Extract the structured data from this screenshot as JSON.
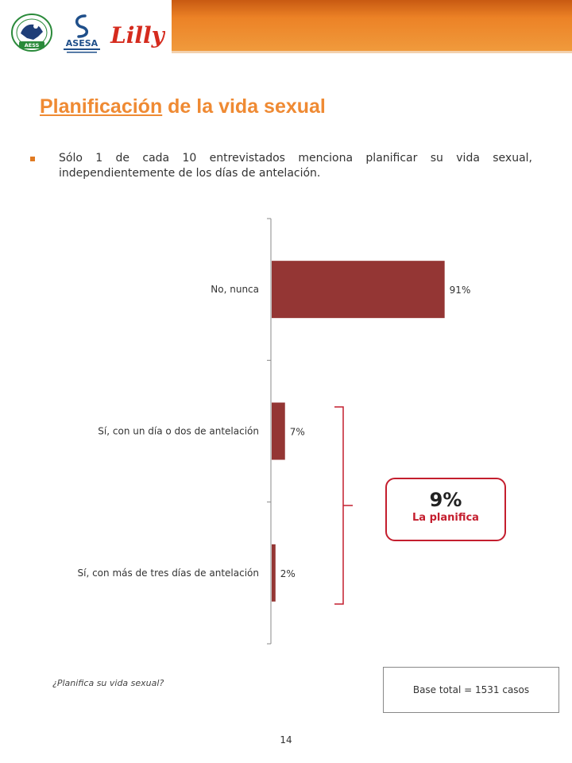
{
  "slide": {
    "title_underlined": "Planificación",
    "title_rest": " de la vida sexual",
    "bullet": "Sólo 1 de cada 10 entrevistados menciona planificar su vida sexual, independientemente de los días de antelación.",
    "question": "¿Planifica su vida sexual?",
    "base": "Base total = 1531 casos",
    "page_number": "14",
    "callout": {
      "percent": "9%",
      "label": "La planifica"
    },
    "colors": {
      "accent_orange": "#ef8a33",
      "bar": "#943634",
      "callout_border": "#c41e2e"
    },
    "logos": [
      {
        "name": "aess-logo",
        "text": "AESS"
      },
      {
        "name": "asesa-logo",
        "text": "ASESA"
      },
      {
        "name": "lilly-logo",
        "text": "Lilly"
      }
    ]
  },
  "chart_data": {
    "type": "bar",
    "orientation": "horizontal",
    "categories": [
      "No, nunca",
      "Sí, con un día o dos de antelación",
      "Sí, con más de tres días de antelación"
    ],
    "values": [
      91,
      7,
      2
    ],
    "value_labels": [
      "91%",
      "7%",
      "2%"
    ],
    "title": "",
    "xlabel": "",
    "ylabel": "",
    "xlim": [
      0,
      100
    ],
    "grid": false,
    "legend": "none"
  }
}
